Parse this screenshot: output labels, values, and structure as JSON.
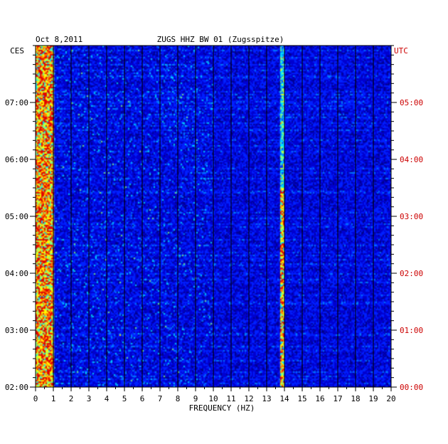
{
  "header": {
    "date": "Oct 8,2011",
    "station": "ZUGS HHZ BW 01 (Zugsspitze)"
  },
  "chart_data": {
    "type": "heatmap",
    "title": "ZUGS HHZ BW 01 (Zugsspitze)",
    "date": "Oct 8,2011",
    "xlabel": "FREQUENCY (HZ)",
    "xlim": [
      0,
      20
    ],
    "x_ticks": [
      "0",
      "1",
      "2",
      "3",
      "4",
      "5",
      "6",
      "7",
      "8",
      "9",
      "10",
      "11",
      "12",
      "13",
      "14",
      "15",
      "16",
      "17",
      "18",
      "19",
      "20"
    ],
    "left_axis": {
      "label": "CES",
      "ticks": [
        "07:00",
        "06:00",
        "05:00",
        "04:00",
        "03:00",
        "02:00"
      ]
    },
    "right_axis": {
      "label": "UTC",
      "ticks": [
        "05:00",
        "04:00",
        "03:00",
        "02:00",
        "01:00",
        "00:00"
      ]
    },
    "time_range_utc_hours": [
      0,
      6
    ],
    "grid": true,
    "colormap": [
      "#00008c",
      "#0000d0",
      "#0020ff",
      "#0080ff",
      "#00e0ff",
      "#80ff80",
      "#ffff00",
      "#ff8000",
      "#e00000"
    ],
    "colors": {
      "utc_axis": "#cc0000",
      "ces_axis": "#000000",
      "background": "#000090"
    },
    "features": [
      {
        "name": "low-frequency energy",
        "freq_hz": [
          0.1,
          0.7
        ],
        "intensity": "high"
      },
      {
        "name": "narrow band line",
        "freq_hz": 13.9,
        "time_utc_hours": [
          0,
          3.5
        ],
        "intensity": "high"
      }
    ]
  }
}
